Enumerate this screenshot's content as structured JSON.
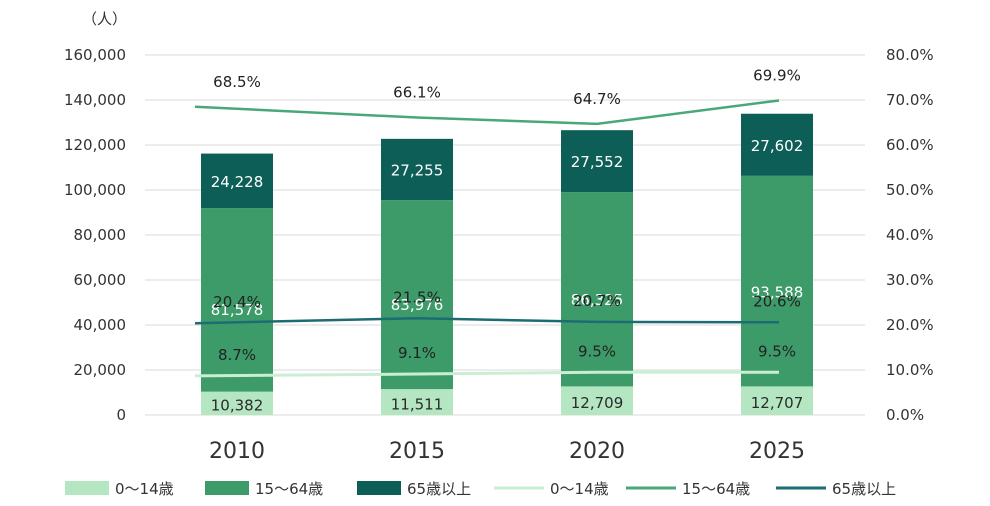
{
  "chart_data": {
    "type": "bar",
    "unit_label": "（人）",
    "categories": [
      "2010",
      "2015",
      "2020",
      "2025"
    ],
    "ylim": [
      0,
      160000
    ],
    "y_ticks": [
      "160,000",
      "140,000",
      "120,000",
      "100,000",
      "80,000",
      "60,000",
      "40,000",
      "20,000",
      "0"
    ],
    "y2lim": [
      0,
      80
    ],
    "y2_ticks": [
      "80.0%",
      "70.0%",
      "60.0%",
      "50.0%",
      "40.0%",
      "30.0%",
      "20.0%",
      "10.0%",
      "0.0%"
    ],
    "grid": true,
    "legend_position": "bottom",
    "series": [
      {
        "name": "0～14歳",
        "kind": "bar",
        "color": "#b5e6c2",
        "text_color": "#2b2b2b",
        "values": [
          10382,
          11511,
          12709,
          12707
        ],
        "labels": [
          "10,382",
          "11,511",
          "12,709",
          "12,707"
        ]
      },
      {
        "name": "15～64歳",
        "kind": "bar",
        "color": "#3d9b6a",
        "text_color": "#ffffff",
        "values": [
          81578,
          83976,
          86325,
          93588
        ],
        "labels": [
          "81,578",
          "83,976",
          "86,325",
          "93,588"
        ]
      },
      {
        "name": "65歳以上",
        "kind": "bar",
        "color": "#0d5e57",
        "text_color": "#ffffff",
        "values": [
          24228,
          27255,
          27552,
          27602
        ],
        "labels": [
          "24,228",
          "27,255",
          "27,552",
          "27,602"
        ]
      }
    ],
    "line_series": [
      {
        "name": "0～14歳",
        "kind": "line",
        "color": "#c9efd3",
        "values": [
          8.7,
          9.1,
          9.5,
          9.5
        ],
        "labels": [
          "8.7%",
          "9.1%",
          "9.5%",
          "9.5%"
        ]
      },
      {
        "name": "15～64歳",
        "kind": "line",
        "color": "#4aa878",
        "values": [
          68.5,
          66.1,
          64.7,
          69.9
        ],
        "labels": [
          "68.5%",
          "66.1%",
          "64.7%",
          "69.9%"
        ]
      },
      {
        "name": "65歳以上",
        "kind": "line",
        "color": "#1d6b73",
        "values": [
          20.4,
          21.5,
          20.7,
          20.6
        ],
        "labels": [
          "20.4%",
          "21.5%",
          "20.7%",
          "20.6%"
        ]
      }
    ]
  }
}
